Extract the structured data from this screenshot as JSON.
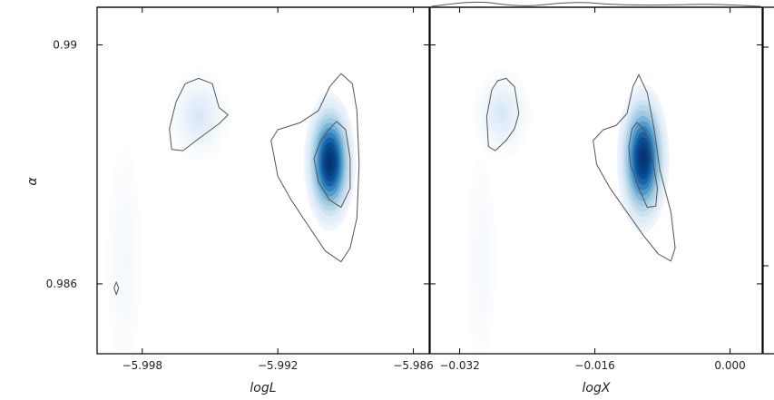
{
  "chart_data": [
    {
      "type": "heatmap",
      "subtype": "2d-kde-contour",
      "colormap": "Blues",
      "xlabel": "logL",
      "ylabel": "α",
      "xlim": [
        -6.0,
        -5.9853
      ],
      "ylim": [
        0.98483,
        0.99063
      ],
      "xticks": [
        -5.998,
        -5.992,
        -5.986
      ],
      "xtick_labels": [
        "−5.998",
        "−5.992",
        "−5.986"
      ],
      "yticks": [
        0.99,
        0.986
      ],
      "ytick_labels": [
        "0.99",
        "0.986"
      ],
      "density_peaks": [
        {
          "x": -5.9897,
          "y": 0.98804,
          "strength": 1.0,
          "sx": 0.00048,
          "sy": 0.00048
        },
        {
          "x": -5.9955,
          "y": 0.98881,
          "strength": 0.22,
          "sx": 0.00058,
          "sy": 0.00032
        },
        {
          "x": -5.9988,
          "y": 0.9864,
          "strength": 0.07,
          "sx": 0.00045,
          "sy": 0.0011
        }
      ],
      "contours": [
        [
          [
            -5.9955,
            0.98944
          ],
          [
            -5.9949,
            0.98935
          ],
          [
            -5.9946,
            0.98895
          ],
          [
            -5.9942,
            0.98883
          ],
          [
            -5.9946,
            0.98868
          ],
          [
            -5.9955,
            0.98843
          ],
          [
            -5.9962,
            0.98823
          ],
          [
            -5.9967,
            0.98825
          ],
          [
            -5.9968,
            0.9886
          ],
          [
            -5.9965,
            0.98905
          ],
          [
            -5.9961,
            0.98935
          ]
        ],
        [
          [
            -5.9892,
            0.98952
          ],
          [
            -5.9887,
            0.98935
          ],
          [
            -5.9885,
            0.9889
          ],
          [
            -5.9884,
            0.988
          ],
          [
            -5.9885,
            0.9871
          ],
          [
            -5.9888,
            0.9866
          ],
          [
            -5.9892,
            0.98637
          ],
          [
            -5.9899,
            0.98655
          ],
          [
            -5.9907,
            0.987
          ],
          [
            -5.9914,
            0.9874
          ],
          [
            -5.992,
            0.9878
          ],
          [
            -5.9923,
            0.9884
          ],
          [
            -5.992,
            0.98858
          ],
          [
            -5.991,
            0.9887
          ],
          [
            -5.9902,
            0.9889
          ],
          [
            -5.9897,
            0.9893
          ]
        ],
        [
          [
            -5.9894,
            0.98872
          ],
          [
            -5.989,
            0.98858
          ],
          [
            -5.9888,
            0.9881
          ],
          [
            -5.9888,
            0.9876
          ],
          [
            -5.9892,
            0.98728
          ],
          [
            -5.9897,
            0.9874
          ],
          [
            -5.9902,
            0.9877
          ],
          [
            -5.9904,
            0.9881
          ],
          [
            -5.9901,
            0.9884
          ],
          [
            -5.9897,
            0.9886
          ]
        ],
        [
          [
            -5.99915,
            0.98603
          ],
          [
            -5.99905,
            0.98593
          ],
          [
            -5.99915,
            0.98582
          ],
          [
            -5.99925,
            0.98593
          ]
        ]
      ]
    },
    {
      "type": "heatmap",
      "subtype": "2d-kde-contour",
      "colormap": "Blues",
      "xlabel": "logX",
      "ylabel": "",
      "xlim": [
        -0.0355,
        0.0038
      ],
      "ylim": [
        0.98483,
        0.99063
      ],
      "xticks": [
        -0.032,
        -0.016,
        0.0
      ],
      "xtick_labels": [
        "−0.032",
        "−0.016",
        "0.000"
      ],
      "yticks": [
        0.99,
        0.986
      ],
      "ytick_labels": [],
      "density_peaks": [
        {
          "x": -0.0103,
          "y": 0.9881,
          "strength": 1.0,
          "sx": 0.0013,
          "sy": 0.00052
        },
        {
          "x": -0.027,
          "y": 0.98885,
          "strength": 0.22,
          "sx": 0.0015,
          "sy": 0.00032
        },
        {
          "x": -0.0295,
          "y": 0.9864,
          "strength": 0.06,
          "sx": 0.0012,
          "sy": 0.0011
        }
      ],
      "contours": [
        [
          [
            -0.0265,
            0.98944
          ],
          [
            -0.0255,
            0.9893
          ],
          [
            -0.025,
            0.98885
          ],
          [
            -0.0255,
            0.9886
          ],
          [
            -0.0265,
            0.9884
          ],
          [
            -0.0278,
            0.98823
          ],
          [
            -0.0286,
            0.9883
          ],
          [
            -0.0288,
            0.9888
          ],
          [
            -0.0282,
            0.98925
          ],
          [
            -0.0275,
            0.9894
          ]
        ],
        [
          [
            -0.0108,
            0.9895
          ],
          [
            -0.0098,
            0.9892
          ],
          [
            -0.009,
            0.9886
          ],
          [
            -0.0083,
            0.9879
          ],
          [
            -0.007,
            0.9872
          ],
          [
            -0.0065,
            0.9866
          ],
          [
            -0.007,
            0.98638
          ],
          [
            -0.0085,
            0.9865
          ],
          [
            -0.0102,
            0.9868
          ],
          [
            -0.0122,
            0.9872
          ],
          [
            -0.0142,
            0.9876
          ],
          [
            -0.0158,
            0.988
          ],
          [
            -0.0162,
            0.9884
          ],
          [
            -0.015,
            0.98858
          ],
          [
            -0.0135,
            0.98865
          ],
          [
            -0.0122,
            0.98885
          ],
          [
            -0.0115,
            0.9893
          ]
        ],
        [
          [
            -0.011,
            0.9887
          ],
          [
            -0.01,
            0.98855
          ],
          [
            -0.0092,
            0.9881
          ],
          [
            -0.0086,
            0.9876
          ],
          [
            -0.0088,
            0.9873
          ],
          [
            -0.0098,
            0.98728
          ],
          [
            -0.0108,
            0.9876
          ],
          [
            -0.0118,
            0.988
          ],
          [
            -0.012,
            0.9883
          ],
          [
            -0.0116,
            0.9886
          ]
        ]
      ]
    }
  ]
}
